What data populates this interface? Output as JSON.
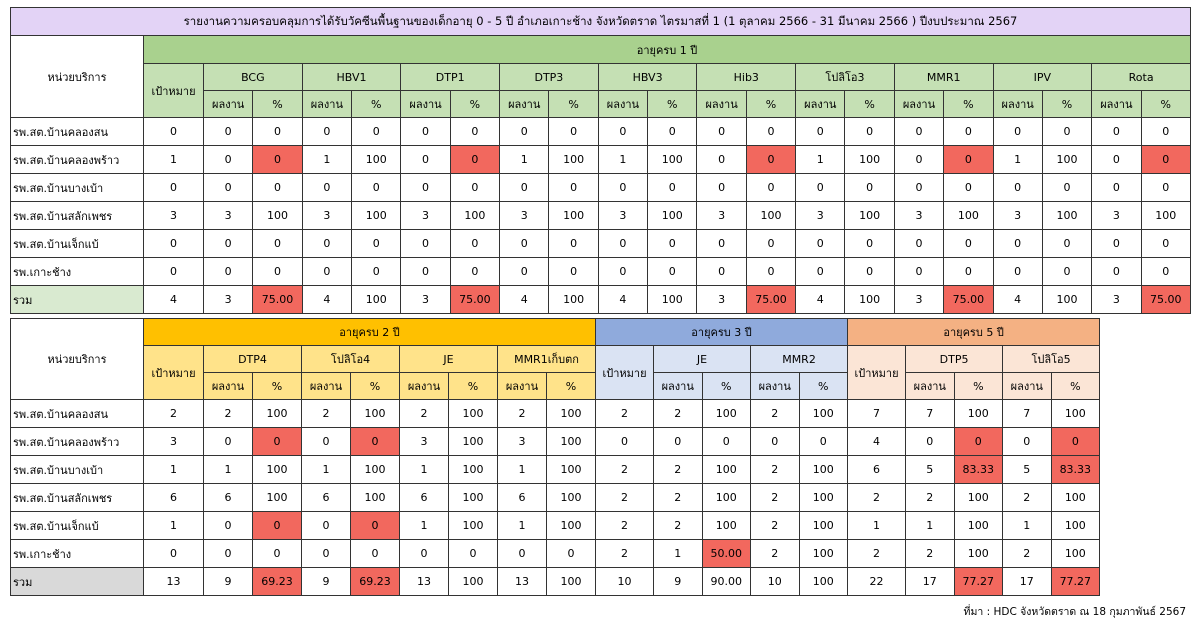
{
  "title": "รายงานความครอบคลุมการได้รับวัคซีนพื้นฐานของเด็กอายุ 0 - 5 ปี อำเภอเกาะช้าง จังหวัดตราด ไตรมาสที่ 1 (1 ตุลาคม 2566 - 31 มีนาคม 2566 ) ปีงบประมาณ 2567",
  "labels": {
    "unit": "หน่วยบริการ",
    "target": "เป้าหมาย",
    "result": "ผลงาน",
    "percent": "%",
    "total": "รวม"
  },
  "colors": {
    "low": "#f2685e",
    "age1_header": "#a9d18e",
    "age2_header": "#ffc000",
    "age3_header": "#8faadc",
    "age5_header": "#f4b183"
  },
  "table1": {
    "group": "อายุครบ 1 ปี",
    "vaccines": [
      "BCG",
      "HBV1",
      "DTP1",
      "DTP3",
      "HBV3",
      "Hib3",
      "โปลิโอ3",
      "MMR1",
      "IPV",
      "Rota"
    ],
    "rows": [
      {
        "name": "รพ.สต.บ้านคลองสน",
        "target": "0",
        "cells": [
          "0",
          "0",
          "0",
          "0",
          "0",
          "0",
          "0",
          "0",
          "0",
          "0",
          "0",
          "0",
          "0",
          "0",
          "0",
          "0",
          "0",
          "0",
          "0",
          "0"
        ],
        "low": []
      },
      {
        "name": "รพ.สต.บ้านคลองพร้าว",
        "target": "1",
        "cells": [
          "0",
          "0",
          "1",
          "100",
          "0",
          "0",
          "1",
          "100",
          "1",
          "100",
          "0",
          "0",
          "1",
          "100",
          "0",
          "0",
          "1",
          "100",
          "0",
          "0"
        ],
        "low": [
          1,
          5,
          11,
          15,
          19
        ]
      },
      {
        "name": "รพ.สต.บ้านบางเบ้า",
        "target": "0",
        "cells": [
          "0",
          "0",
          "0",
          "0",
          "0",
          "0",
          "0",
          "0",
          "0",
          "0",
          "0",
          "0",
          "0",
          "0",
          "0",
          "0",
          "0",
          "0",
          "0",
          "0"
        ],
        "low": []
      },
      {
        "name": "รพ.สต.บ้านสลักเพชร",
        "target": "3",
        "cells": [
          "3",
          "100",
          "3",
          "100",
          "3",
          "100",
          "3",
          "100",
          "3",
          "100",
          "3",
          "100",
          "3",
          "100",
          "3",
          "100",
          "3",
          "100",
          "3",
          "100"
        ],
        "low": []
      },
      {
        "name": "รพ.สต.บ้านเจ็กแบ้",
        "target": "0",
        "cells": [
          "0",
          "0",
          "0",
          "0",
          "0",
          "0",
          "0",
          "0",
          "0",
          "0",
          "0",
          "0",
          "0",
          "0",
          "0",
          "0",
          "0",
          "0",
          "0",
          "0"
        ],
        "low": []
      },
      {
        "name": "รพ.เกาะช้าง",
        "target": "0",
        "cells": [
          "0",
          "0",
          "0",
          "0",
          "0",
          "0",
          "0",
          "0",
          "0",
          "0",
          "0",
          "0",
          "0",
          "0",
          "0",
          "0",
          "0",
          "0",
          "0",
          "0"
        ],
        "low": []
      },
      {
        "name": "รวม",
        "target": "4",
        "cells": [
          "3",
          "75.00",
          "4",
          "100",
          "3",
          "75.00",
          "4",
          "100",
          "4",
          "100",
          "3",
          "75.00",
          "4",
          "100",
          "3",
          "75.00",
          "4",
          "100",
          "3",
          "75.00"
        ],
        "low": [
          1,
          5,
          11,
          15,
          19
        ],
        "total": true
      }
    ]
  },
  "table2": {
    "groups": [
      {
        "label": "อายุครบ 2 ปี",
        "cls": "y",
        "vaccines": [
          "DTP4",
          "โปลิโอ4",
          "JE",
          "MMR1เก็บตก"
        ]
      },
      {
        "label": "อายุครบ 3 ปี",
        "cls": "b",
        "vaccines": [
          "JE",
          "MMR2"
        ]
      },
      {
        "label": "อายุครบ 5 ปี",
        "cls": "o",
        "vaccines": [
          "DTP5",
          "โปลิโอ5"
        ]
      }
    ],
    "rows": [
      {
        "name": "รพ.สต.บ้านคลองสน",
        "g": [
          {
            "target": "2",
            "cells": [
              "2",
              "100",
              "2",
              "100",
              "2",
              "100",
              "2",
              "100"
            ],
            "low": []
          },
          {
            "target": "2",
            "cells": [
              "2",
              "100",
              "2",
              "100"
            ],
            "low": []
          },
          {
            "target": "7",
            "cells": [
              "7",
              "100",
              "7",
              "100"
            ],
            "low": []
          }
        ]
      },
      {
        "name": "รพ.สต.บ้านคลองพร้าว",
        "g": [
          {
            "target": "3",
            "cells": [
              "0",
              "0",
              "0",
              "0",
              "3",
              "100",
              "3",
              "100"
            ],
            "low": [
              1,
              3
            ]
          },
          {
            "target": "0",
            "cells": [
              "0",
              "0",
              "0",
              "0"
            ],
            "low": []
          },
          {
            "target": "4",
            "cells": [
              "0",
              "0",
              "0",
              "0"
            ],
            "low": [
              1,
              3
            ]
          }
        ]
      },
      {
        "name": "รพ.สต.บ้านบางเบ้า",
        "g": [
          {
            "target": "1",
            "cells": [
              "1",
              "100",
              "1",
              "100",
              "1",
              "100",
              "1",
              "100"
            ],
            "low": []
          },
          {
            "target": "2",
            "cells": [
              "2",
              "100",
              "2",
              "100"
            ],
            "low": []
          },
          {
            "target": "6",
            "cells": [
              "5",
              "83.33",
              "5",
              "83.33"
            ],
            "low": [
              1,
              3
            ]
          }
        ]
      },
      {
        "name": "รพ.สต.บ้านสลักเพชร",
        "g": [
          {
            "target": "6",
            "cells": [
              "6",
              "100",
              "6",
              "100",
              "6",
              "100",
              "6",
              "100"
            ],
            "low": []
          },
          {
            "target": "2",
            "cells": [
              "2",
              "100",
              "2",
              "100"
            ],
            "low": []
          },
          {
            "target": "2",
            "cells": [
              "2",
              "100",
              "2",
              "100"
            ],
            "low": []
          }
        ]
      },
      {
        "name": "รพ.สต.บ้านเจ็กแบ้",
        "g": [
          {
            "target": "1",
            "cells": [
              "0",
              "0",
              "0",
              "0",
              "1",
              "100",
              "1",
              "100"
            ],
            "low": [
              1,
              3
            ]
          },
          {
            "target": "2",
            "cells": [
              "2",
              "100",
              "2",
              "100"
            ],
            "low": []
          },
          {
            "target": "1",
            "cells": [
              "1",
              "100",
              "1",
              "100"
            ],
            "low": []
          }
        ]
      },
      {
        "name": "รพ.เกาะช้าง",
        "g": [
          {
            "target": "0",
            "cells": [
              "0",
              "0",
              "0",
              "0",
              "0",
              "0",
              "0",
              "0"
            ],
            "low": []
          },
          {
            "target": "2",
            "cells": [
              "1",
              "50.00",
              "2",
              "100"
            ],
            "low": [
              1
            ]
          },
          {
            "target": "2",
            "cells": [
              "2",
              "100",
              "2",
              "100"
            ],
            "low": []
          }
        ]
      },
      {
        "name": "รวม",
        "total": true,
        "g": [
          {
            "target": "13",
            "cells": [
              "9",
              "69.23",
              "9",
              "69.23",
              "13",
              "100",
              "13",
              "100"
            ],
            "low": [
              1,
              3
            ]
          },
          {
            "target": "10",
            "cells": [
              "9",
              "90.00",
              "10",
              "100"
            ],
            "low": []
          },
          {
            "target": "22",
            "cells": [
              "17",
              "77.27",
              "17",
              "77.27"
            ],
            "low": [
              1,
              3
            ]
          }
        ]
      }
    ]
  },
  "source": "ที่มา : HDC จังหวัดตราด ณ 18 กุมภาพันธ์  2567"
}
